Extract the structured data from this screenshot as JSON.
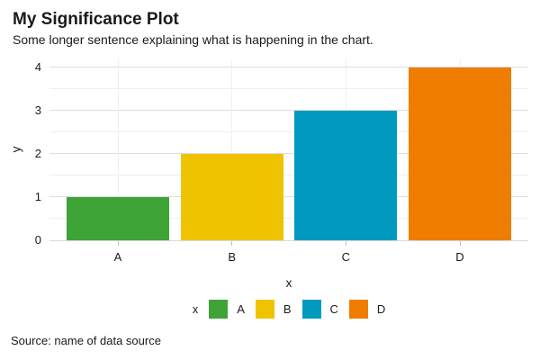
{
  "chart_data": {
    "type": "bar",
    "title": "My Significance Plot",
    "subtitle": "Some longer sentence explaining what is happening in the chart.",
    "categories": [
      "A",
      "B",
      "C",
      "D"
    ],
    "values": [
      1,
      2,
      3,
      4
    ],
    "colors": [
      "#3EA436",
      "#F0C300",
      "#0099C0",
      "#EF7D00"
    ],
    "xlabel": "x",
    "ylabel": "y",
    "ylim": [
      0,
      4
    ],
    "y_ticks": [
      0,
      1,
      2,
      3,
      4
    ],
    "bar_width_ratio": 0.9,
    "grid": "horizontal major + minor, vertical major at category centers",
    "legend_position": "bottom",
    "legend_title": "x",
    "source": "Source: name of data source"
  },
  "theme": {
    "background": "#FFFFFF",
    "text_color": "#1A1A1A",
    "grid_major_color": "#DEDEDE",
    "grid_minor_color": "#EFEFEF",
    "axis_line_color": "#D9D9D9",
    "tick_mark_color": "#BFBFBF"
  }
}
